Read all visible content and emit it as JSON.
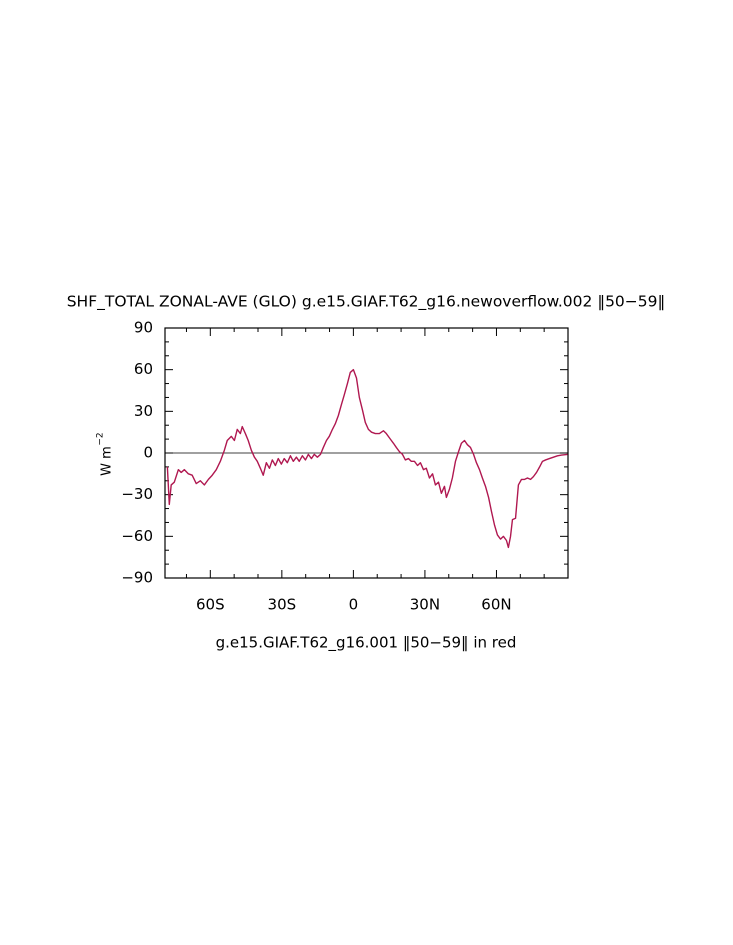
{
  "chart_data": {
    "type": "line",
    "title": "SHF_TOTAL ZONAL-AVE (GLO) g.e15.GIAF.T62_g16.newoverflow.002 ‖50−59‖",
    "x_label": "g.e15.GIAF.T62_g16.001 ‖50−59‖ in red",
    "y_label": "W m",
    "y_label_superscript": "−2",
    "xlim": [
      -79,
      90
    ],
    "ylim": [
      -90,
      90
    ],
    "xticks": [
      {
        "value": -60,
        "label": "60S"
      },
      {
        "value": -30,
        "label": "30S"
      },
      0,
      {
        "value": 30,
        "label": "30N"
      },
      {
        "value": 60,
        "label": "60N"
      }
    ],
    "yticks": [
      {
        "value": -90,
        "label": "−90"
      },
      {
        "value": -60,
        "label": "−60"
      },
      {
        "value": -30,
        "label": "−30"
      },
      0,
      30,
      60,
      90
    ],
    "xminorticks": [
      -70,
      -50,
      -40,
      -20,
      -10,
      10,
      20,
      40,
      50,
      70,
      80
    ],
    "yminorticks": [
      -80,
      -70,
      -50,
      -40,
      -20,
      -10,
      10,
      20,
      40,
      50,
      70,
      80
    ],
    "zero_line": 0,
    "series": [
      {
        "color": "#b01850",
        "x": [
          -78.0,
          -77.2,
          -76.4,
          -75.1,
          -73.4,
          -72.2,
          -70.9,
          -69.2,
          -67.6,
          -65.9,
          -64.2,
          -62.5,
          -60.8,
          -59.2,
          -57.5,
          -55.8,
          -54.1,
          -52.9,
          -51.2,
          -49.9,
          -48.7,
          -47.4,
          -46.6,
          -45.3,
          -44.1,
          -42.8,
          -41.5,
          -40.3,
          -39.0,
          -37.8,
          -36.5,
          -35.2,
          -34.0,
          -32.7,
          -31.5,
          -30.2,
          -29.0,
          -27.7,
          -26.4,
          -25.2,
          -23.9,
          -22.7,
          -21.4,
          -20.1,
          -18.9,
          -17.6,
          -16.4,
          -15.1,
          -13.8,
          -12.6,
          -11.3,
          -10.1,
          -8.8,
          -7.6,
          -6.3,
          -5.0,
          -3.8,
          -2.5,
          -1.3,
          0,
          1.3,
          2.5,
          3.8,
          5.0,
          6.3,
          7.6,
          9.2,
          10.9,
          12.6,
          13.8,
          15.5,
          16.8,
          18.0,
          19.3,
          20.6,
          21.8,
          23.1,
          24.3,
          25.6,
          26.9,
          28.1,
          29.4,
          30.6,
          31.9,
          33.2,
          34.4,
          35.7,
          36.9,
          38.2,
          39.0,
          40.3,
          41.5,
          42.8,
          44.1,
          45.3,
          46.6,
          47.8,
          49.1,
          50.4,
          51.6,
          52.9,
          54.1,
          55.4,
          56.7,
          57.9,
          59.2,
          60.4,
          61.7,
          62.9,
          64.2,
          65.0,
          65.9,
          66.7,
          68.0,
          69.2,
          70.5,
          71.8,
          73.0,
          74.3,
          75.5,
          76.8,
          78.1,
          79.3,
          80.6,
          82.2,
          83.9,
          85.6,
          87.3,
          89.8
        ],
        "values": [
          -10,
          -37,
          -23,
          -21,
          -12,
          -14,
          -12,
          -15,
          -16,
          -22,
          -20,
          -23,
          -19,
          -16,
          -12,
          -6,
          2,
          9,
          12,
          9,
          17,
          14,
          19,
          14,
          9,
          2,
          -3,
          -6,
          -11,
          -16,
          -7,
          -11,
          -5,
          -9,
          -4,
          -8,
          -4,
          -7,
          -2,
          -6,
          -3,
          -6,
          -2,
          -5,
          -1,
          -4,
          -1,
          -3,
          -1,
          4,
          9,
          12,
          17,
          21,
          27,
          35,
          42,
          50,
          58,
          60,
          54,
          40,
          31,
          22,
          17,
          15,
          14,
          14,
          16,
          14,
          10,
          7,
          4,
          1,
          -1,
          -5,
          -4,
          -6,
          -6,
          -9,
          -7,
          -12,
          -11,
          -18,
          -15,
          -23,
          -21,
          -29,
          -24,
          -32,
          -26,
          -18,
          -6,
          1,
          7,
          9,
          6,
          4,
          -1,
          -7,
          -12,
          -18,
          -24,
          -32,
          -42,
          -52,
          -59,
          -62,
          -60,
          -63,
          -68,
          -60,
          -48,
          -47,
          -23,
          -19,
          -19,
          -18,
          -19,
          -17,
          -14,
          -10,
          -6,
          -5,
          -4,
          -3,
          -2,
          -1.5,
          -1
        ]
      }
    ]
  }
}
